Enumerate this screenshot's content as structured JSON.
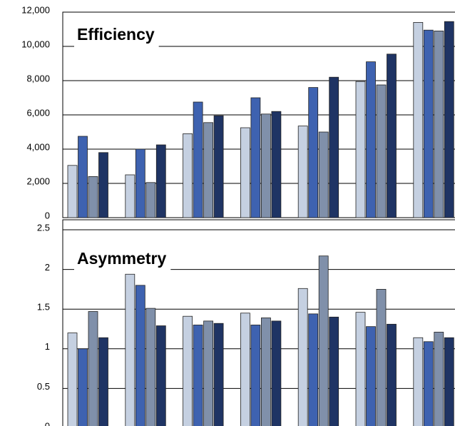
{
  "chart_data": [
    {
      "type": "bar",
      "title": "Efficiency",
      "ylim": [
        0,
        12000
      ],
      "yticks": [
        0,
        {
          "value": 2000,
          "label": "2,000"
        },
        {
          "value": 4000,
          "label": "4,000"
        },
        {
          "value": 6000,
          "label": "6,000"
        },
        {
          "value": 8000,
          "label": "8,000"
        },
        {
          "value": 10000,
          "label": "10,000"
        },
        {
          "value": 12000,
          "label": "12,000"
        }
      ],
      "grid": true,
      "series": [
        {
          "color": "#c5d0e1",
          "values": [
            3050,
            2500,
            4900,
            5250,
            5350,
            7950,
            11400
          ]
        },
        {
          "color": "#3e62b0",
          "values": [
            4750,
            4000,
            6750,
            7000,
            7600,
            9100,
            10950
          ]
        },
        {
          "color": "#8090aa",
          "values": [
            2400,
            2050,
            5550,
            6050,
            5000,
            7750,
            10900
          ]
        },
        {
          "color": "#1f3464",
          "values": [
            3800,
            4250,
            5950,
            6200,
            8200,
            9550,
            11450
          ]
        }
      ]
    },
    {
      "type": "bar",
      "title": "Asymmetry",
      "ylim": [
        0,
        2.5
      ],
      "yticks": [
        0,
        0.5,
        1,
        1.5,
        2,
        2.5
      ],
      "grid": true,
      "series": [
        {
          "color": "#c5d0e1",
          "values": [
            1.2,
            1.94,
            1.41,
            1.45,
            1.76,
            1.46,
            1.14
          ]
        },
        {
          "color": "#3e62b0",
          "values": [
            1.0,
            1.8,
            1.3,
            1.3,
            1.44,
            1.28,
            1.09
          ]
        },
        {
          "color": "#8090aa",
          "values": [
            1.47,
            1.51,
            1.35,
            1.39,
            2.17,
            1.75,
            1.21
          ]
        },
        {
          "color": "#1f3464",
          "values": [
            1.14,
            1.29,
            1.32,
            1.35,
            1.4,
            1.31,
            1.14
          ]
        }
      ]
    }
  ]
}
